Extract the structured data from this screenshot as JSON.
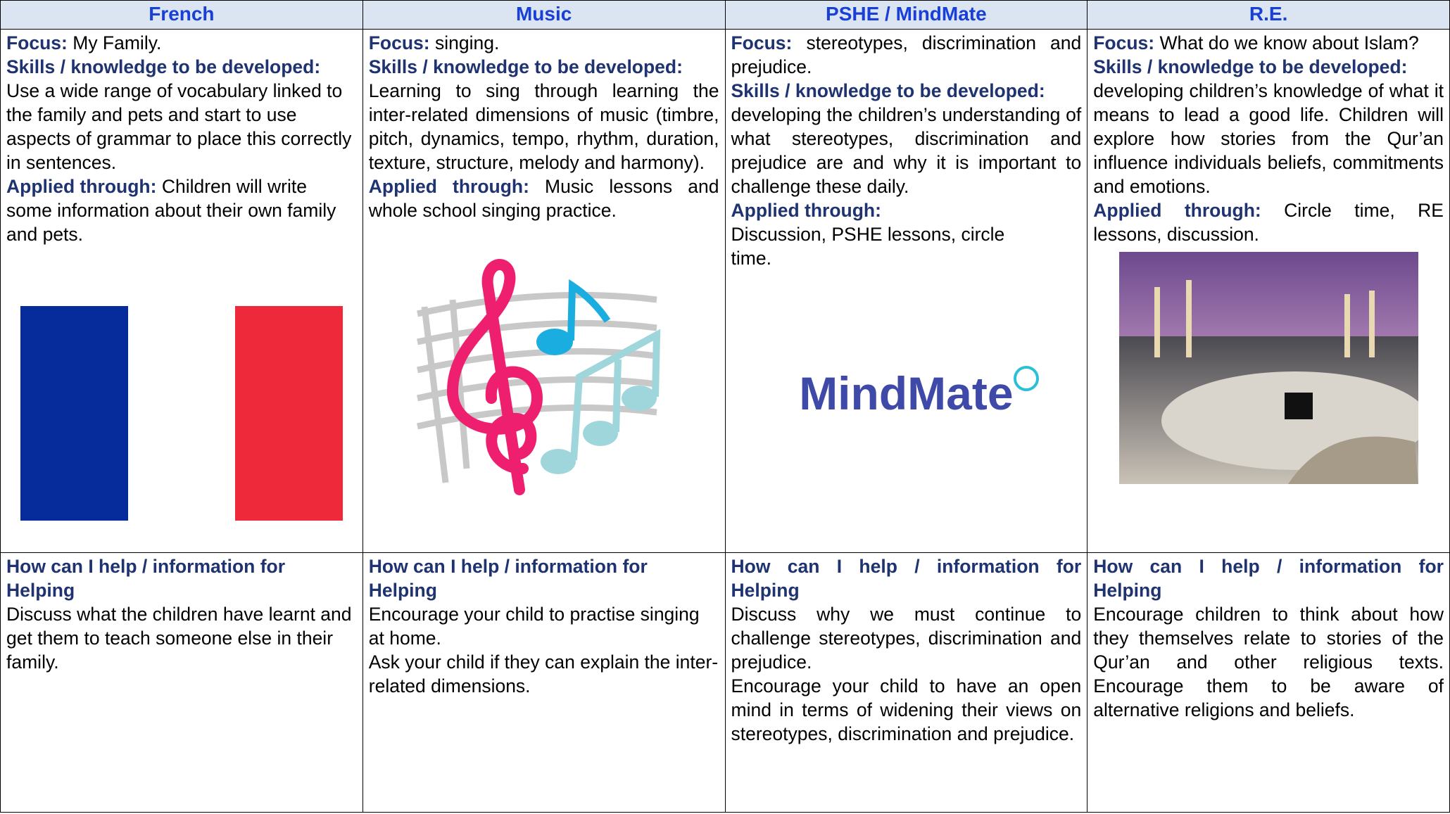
{
  "labels": {
    "focus": "Focus:",
    "skills": "Skills / knowledge to be developed:",
    "applied": "Applied through:",
    "help": "How can I help / information for Helping"
  },
  "columns": [
    {
      "header": "French",
      "focus": "My Family.",
      "skills": "Use a wide range of vocabulary linked to the family and pets and start to use aspects of grammar to place this correctly in sentences.",
      "applied": "Children will write some information about their own family and pets.",
      "help": [
        "Discuss what the children have learnt and get them to teach someone else in their family."
      ]
    },
    {
      "header": "Music",
      "focus": "singing.",
      "skills": "Learning to sing through learning the inter-related dimensions of music (timbre, pitch, dynamics, tempo, rhythm, duration, texture, structure, melody and harmony).",
      "applied": "Music lessons and whole school singing practice.",
      "help": [
        "Encourage your child to practise singing at home.",
        "Ask your child if they can explain the inter-related dimensions."
      ]
    },
    {
      "header": "PSHE / MindMate",
      "focus": "stereotypes, discrimination and prejudice.",
      "skills": "developing the children’s understanding of what stereotypes, discrimination and prejudice are and why it is important to challenge these daily.",
      "applied": "Discussion, PSHE lessons, circle time.",
      "logo": "MindMate",
      "help": [
        "Discuss why we must continue to challenge stereotypes, discrimination and prejudice.",
        "Encourage your child to have an open mind in terms of widening their views on stereotypes, discrimination and prejudice."
      ]
    },
    {
      "header": "R.E.",
      "focus": "What do we know about Islam?",
      "skills": "developing children’s knowledge of what it means to lead a good life. Children will explore how stories from the Qur’an influence individuals beliefs, commitments and emotions.",
      "applied": "Circle time, RE lessons, discussion.",
      "help": [
        "Encourage children to think about how they themselves relate to stories of the Qur’an and other religious texts. Encourage them to be aware of alternative religions and beliefs."
      ]
    }
  ]
}
